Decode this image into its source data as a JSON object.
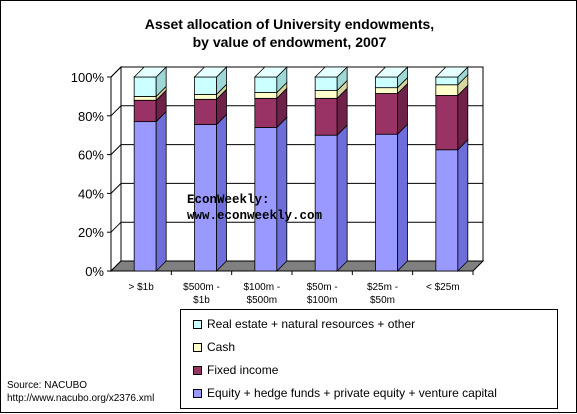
{
  "chart_data": {
    "type": "bar",
    "stacked": true,
    "title": "Asset allocation of University endowments, by value of endowment, 2007",
    "title_lines": [
      "Asset allocation of University endowments,",
      "by value of endowment, 2007"
    ],
    "categories": [
      [
        "> $1b"
      ],
      [
        "$500m -",
        "$1b"
      ],
      [
        "$100m -",
        "$500m"
      ],
      [
        "$50m -",
        "$100m"
      ],
      [
        "$25m -",
        "$50m"
      ],
      [
        "< $25m"
      ]
    ],
    "yticks": [
      "0%",
      "20%",
      "40%",
      "60%",
      "80%",
      "100%"
    ],
    "ylim": [
      0,
      100
    ],
    "series": [
      {
        "name": "Equity + hedge funds + private equity + venture capital",
        "values": [
          77,
          75.5,
          74,
          70,
          70.5,
          62.5
        ],
        "color": "#9999ff",
        "side": "#6e6edb",
        "top": "#b8b8ff"
      },
      {
        "name": "Fixed income",
        "values": [
          11,
          13,
          15,
          19,
          21,
          28
        ],
        "color": "#993366",
        "side": "#6e2249",
        "top": "#b34d80"
      },
      {
        "name": "Cash",
        "values": [
          2,
          2.5,
          3,
          4,
          3,
          5.5
        ],
        "color": "#ffffcc",
        "side": "#d6d6a0",
        "top": "#ffffe6"
      },
      {
        "name": "Real estate + natural resources + other",
        "values": [
          10,
          9,
          8,
          7,
          5.5,
          4
        ],
        "color": "#ccffff",
        "side": "#9fd6d6",
        "top": "#e6ffff"
      }
    ],
    "legend_order": [
      3,
      2,
      1,
      0
    ],
    "legend_position": "bottom-right",
    "annotation": [
      "EconWeekly:",
      "www.econweekly.com"
    ],
    "source": [
      "Source: NACUBO",
      "http://www.nacubo.org/x2376.xml"
    ]
  }
}
